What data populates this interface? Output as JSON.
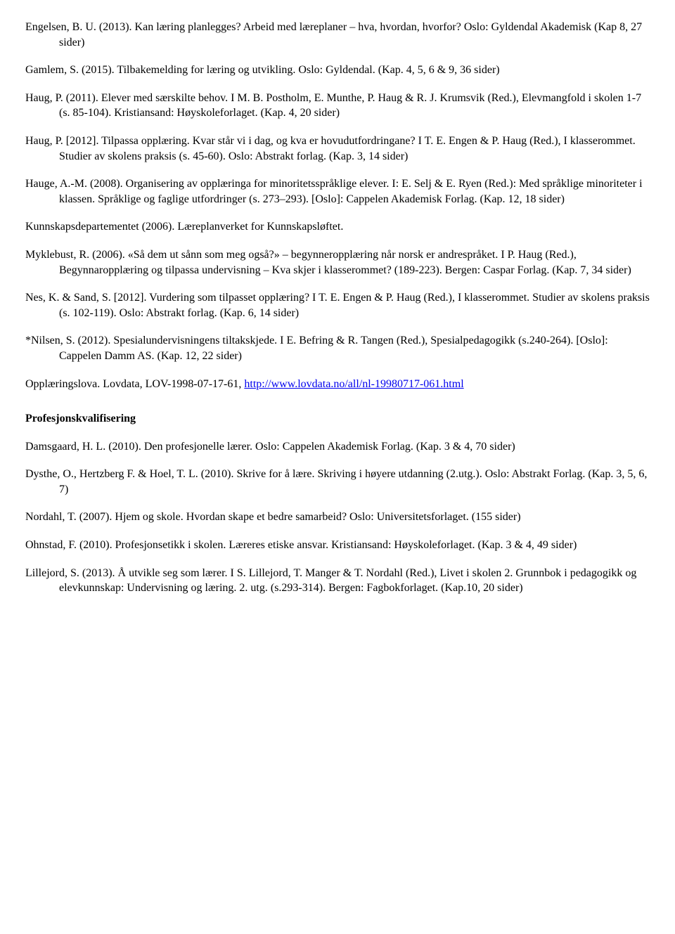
{
  "refs": {
    "r1": "Engelsen, B. U. (2013). Kan læring planlegges? Arbeid med læreplaner – hva, hvordan, hvorfor? Oslo: Gyldendal Akademisk (Kap 8, 27 sider)",
    "r2": "Gamlem, S. (2015). Tilbakemelding for læring og utvikling. Oslo: Gyldendal. (Kap. 4, 5, 6 & 9, 36 sider)",
    "r3": "Haug, P. (2011). Elever med særskilte behov. I M. B. Postholm, E. Munthe, P. Haug & R. J. Krumsvik (Red.), Elevmangfold i skolen 1-7 (s. 85-104). Kristiansand: Høyskoleforlaget. (Kap. 4, 20 sider)",
    "r4": "Haug, P. [2012]. Tilpassa opplæring. Kvar står vi i dag, og kva er hovudutfordringane? I T. E. Engen & P. Haug (Red.), I klasserommet. Studier av skolens praksis (s. 45-60). Oslo: Abstrakt forlag. (Kap. 3, 14 sider)",
    "r5": "Hauge, A.-M. (2008). Organisering av opplæringa for minoritetsspråklige elever. I: E. Selj & E. Ryen (Red.): Med språklige minoriteter i klassen. Språklige og faglige utfordringer (s. 273–293). [Oslo]: Cappelen Akademisk Forlag. (Kap. 12, 18 sider)",
    "r6": "Kunnskapsdepartementet (2006). Læreplanverket for Kunnskapsløftet.",
    "r7": "Myklebust, R. (2006). «Så dem ut sånn som meg også?» – begynneropplæring når norsk er andrespråket. I P. Haug (Red.), Begynnaropplæring og tilpassa undervisning – Kva skjer i klasserommet? (189-223). Bergen: Caspar Forlag. (Kap. 7, 34 sider)",
    "r8": "Nes, K. & Sand, S. [2012]. Vurdering som tilpasset opplæring? I T. E. Engen & P. Haug (Red.), I klasserommet. Studier av skolens praksis (s. 102-119). Oslo: Abstrakt forlag. (Kap. 6, 14 sider)",
    "r9": "*Nilsen, S. (2012). Spesialundervisningens tiltakskjede. I E. Befring & R. Tangen (Red.), Spesialpedagogikk (s.240-264). [Oslo]: Cappelen Damm AS. (Kap. 12, 22 sider)",
    "r10_prefix": "Opplæringslova. Lovdata, LOV-1998-07-17-61, ",
    "r10_link": "http://www.lovdata.no/all/nl-19980717-061.html",
    "section_title": "Profesjonskvalifisering",
    "r11": "Damsgaard, H. L. (2010). Den profesjonelle lærer. Oslo: Cappelen Akademisk Forlag. (Kap. 3 & 4, 70 sider)",
    "r12": "Dysthe, O., Hertzberg F. & Hoel, T. L. (2010). Skrive for å lære. Skriving i høyere utdanning (2.utg.). Oslo: Abstrakt Forlag. (Kap. 3, 5, 6, 7)",
    "r13": "Nordahl, T. (2007). Hjem og skole. Hvordan skape et bedre samarbeid? Oslo: Universitetsforlaget. (155 sider)",
    "r14": "Ohnstad, F. (2010). Profesjonsetikk i skolen. Læreres etiske ansvar. Kristiansand: Høyskoleforlaget. (Kap. 3 & 4, 49 sider)",
    "r15": "Lillejord, S. (2013). Å utvikle seg som lærer. I S. Lillejord, T. Manger & T. Nordahl (Red.), Livet i skolen 2. Grunnbok i pedagogikk og elevkunnskap: Undervisning og læring. 2. utg. (s.293-314). Bergen: Fagbokforlaget. (Kap.10, 20 sider)"
  }
}
